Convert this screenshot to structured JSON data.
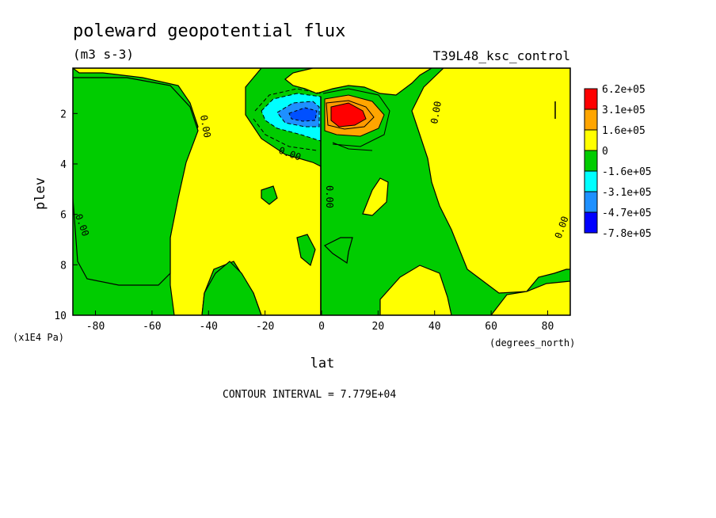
{
  "chart_data": {
    "type": "heatmap",
    "title": "poleward geopotential flux",
    "units": "(m3 s-3)",
    "run_label": "T39L48_ksc_control",
    "xlabel": "lat",
    "x_units": "(degrees_north)",
    "ylabel": "plev",
    "y_units": "(x1E4 Pa)",
    "xlim": [
      -88,
      88
    ],
    "ylim": [
      10,
      0.2
    ],
    "x_ticks": [
      -80,
      -60,
      -40,
      -20,
      0,
      20,
      40,
      60,
      80
    ],
    "y_ticks": [
      2,
      4,
      6,
      8,
      10
    ],
    "legend_levels": [
      "6.2e+05",
      "3.1e+05",
      "1.6e+05",
      "0",
      "-1.6e+05",
      "-3.1e+05",
      "-4.7e+05",
      "-7.8e+05"
    ],
    "legend_colors": [
      "#ff0000",
      "#ffa500",
      "#ffff00",
      "#00cc00",
      "#00ffff",
      "#1e90ff",
      "#0000ff"
    ],
    "contour_interval_label": "CONTOUR INTERVAL = 7.779E+04",
    "contour_labels": [
      "0.00",
      "0.00",
      "0.00",
      "0.00",
      "0.00",
      "0.00"
    ],
    "features": [
      {
        "kind": "max",
        "lat": 7,
        "plev": 2.0,
        "value": 620000
      },
      {
        "kind": "min",
        "lat": -8,
        "plev": 2.0,
        "value": -780000
      }
    ]
  },
  "colors": {
    "positive": "#ffff00",
    "negative": "#00cc00",
    "red": "#ff0000",
    "orange": "#ffa500",
    "cyan": "#00ffff",
    "blue_mid": "#1e90ff",
    "blue_dark": "#0050ff"
  }
}
